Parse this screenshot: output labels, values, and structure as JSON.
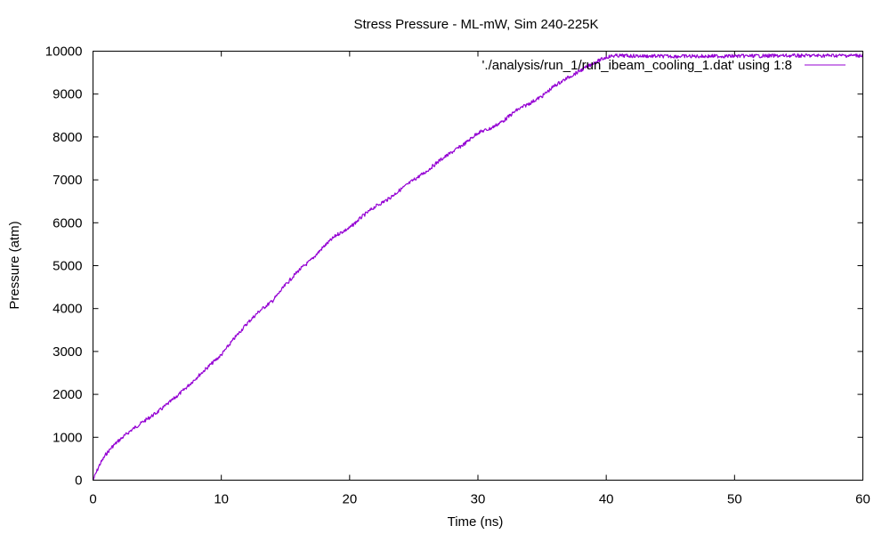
{
  "chart_data": {
    "type": "line",
    "title": "Stress Pressure - ML-mW, Sim 240-225K",
    "xlabel": "Time (ns)",
    "ylabel": "Pressure (atm)",
    "xlim": [
      0,
      60
    ],
    "ylim": [
      0,
      10000
    ],
    "x_ticks": [
      "0",
      "10",
      "20",
      "30",
      "40",
      "50",
      "60"
    ],
    "y_ticks": [
      "0",
      "1000",
      "2000",
      "3000",
      "4000",
      "5000",
      "6000",
      "7000",
      "8000",
      "9000",
      "10000"
    ],
    "grid": false,
    "legend_position": "top-right",
    "series": [
      {
        "name": "'./analysis/run_1/run_ibeam_cooling_1.dat' using 1:8",
        "color": "#9400d3",
        "x": [
          0,
          0.5,
          1,
          1.5,
          2,
          3,
          4,
          5,
          6,
          7,
          8,
          9,
          10,
          11,
          12,
          13,
          14,
          15,
          16,
          17,
          18,
          19,
          20,
          21,
          22,
          23,
          24,
          25,
          26,
          27,
          28,
          29,
          30,
          31,
          32,
          33,
          34,
          35,
          36,
          37,
          38,
          39,
          40,
          40.5,
          41,
          42,
          45,
          50,
          55,
          60
        ],
        "y": [
          0,
          350,
          600,
          780,
          920,
          1170,
          1380,
          1580,
          1820,
          2080,
          2370,
          2650,
          2920,
          3300,
          3650,
          3950,
          4180,
          4550,
          4880,
          5130,
          5450,
          5720,
          5880,
          6150,
          6380,
          6550,
          6780,
          7000,
          7200,
          7450,
          7650,
          7850,
          8100,
          8200,
          8380,
          8620,
          8780,
          8950,
          9200,
          9380,
          9550,
          9720,
          9860,
          9890,
          9895,
          9890,
          9880,
          9885,
          9895,
          9900
        ]
      }
    ]
  }
}
